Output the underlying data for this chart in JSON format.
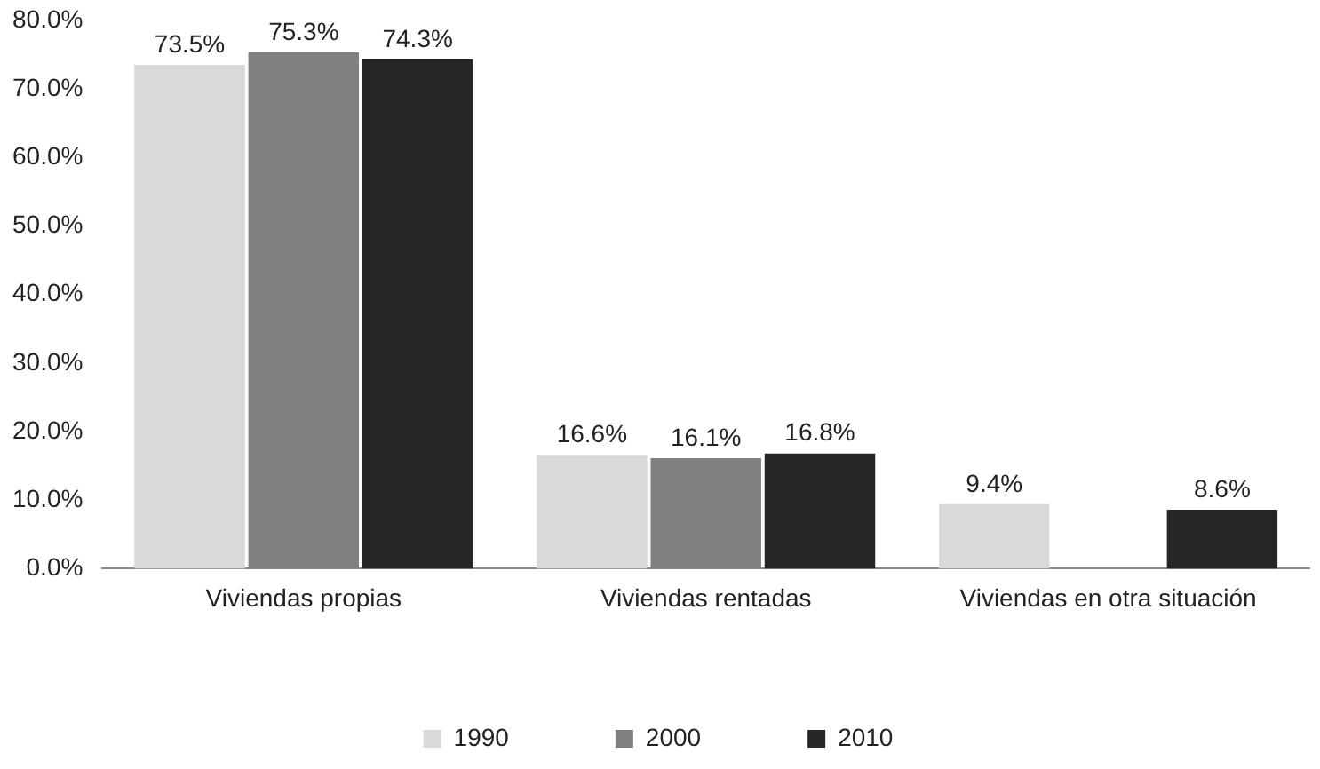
{
  "chart_data": {
    "type": "bar",
    "categories": [
      "Viviendas propias",
      "Viviendas rentadas",
      "Viviendas en otra situación"
    ],
    "series": [
      {
        "name": "1990",
        "color": "#d9d9d9",
        "values": [
          73.5,
          16.6,
          9.4
        ],
        "value_labels": [
          "73.5%",
          "16.6%",
          "9.4%"
        ]
      },
      {
        "name": "2000",
        "color": "#808080",
        "values": [
          75.3,
          16.1,
          null
        ],
        "value_labels": [
          "75.3%",
          "16.1%",
          null
        ]
      },
      {
        "name": "2010",
        "color": "#262626",
        "values": [
          74.3,
          16.8,
          8.6
        ],
        "value_labels": [
          "74.3%",
          "16.8%",
          "8.6%"
        ]
      }
    ],
    "ylim": [
      0,
      80
    ],
    "yticks": [
      {
        "value": 0,
        "label": "0.0%"
      },
      {
        "value": 10,
        "label": "10.0%"
      },
      {
        "value": 20,
        "label": "20.0%"
      },
      {
        "value": 30,
        "label": "30.0%"
      },
      {
        "value": 40,
        "label": "40.0%"
      },
      {
        "value": 50,
        "label": "50.0%"
      },
      {
        "value": 60,
        "label": "60.0%"
      },
      {
        "value": 70,
        "label": "70.0%"
      },
      {
        "value": 80,
        "label": "80.0%"
      }
    ],
    "grid": false,
    "legend": "bottom"
  }
}
